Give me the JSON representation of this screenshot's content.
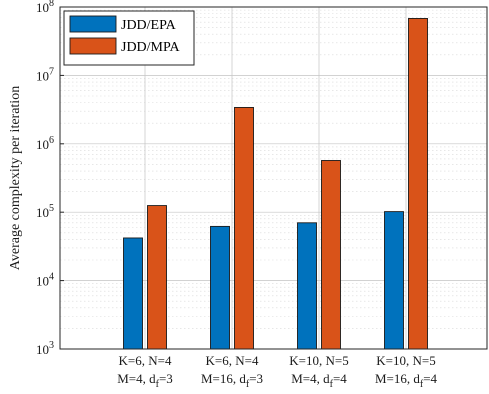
{
  "chart_data": {
    "type": "bar",
    "scale": "log",
    "ylabel": "Average complexity per iteration",
    "ylim": [
      1000,
      100000000
    ],
    "y_ticks": [
      {
        "base": "10",
        "exp": "3"
      },
      {
        "base": "10",
        "exp": "4"
      },
      {
        "base": "10",
        "exp": "5"
      },
      {
        "base": "10",
        "exp": "6"
      },
      {
        "base": "10",
        "exp": "7"
      },
      {
        "base": "10",
        "exp": "8"
      }
    ],
    "categories": [
      {
        "line1": "K=6, N=4",
        "line2_pre": "M=4, d",
        "line2_sub": "f",
        "line2_post": "=3"
      },
      {
        "line1": "K=6, N=4",
        "line2_pre": "M=16, d",
        "line2_sub": "f",
        "line2_post": "=3"
      },
      {
        "line1": "K=10, N=5",
        "line2_pre": "M=4, d",
        "line2_sub": "f",
        "line2_post": "=4"
      },
      {
        "line1": "K=10, N=5",
        "line2_pre": "M=16, d",
        "line2_sub": "f",
        "line2_post": "=4"
      }
    ],
    "series": [
      {
        "name": "JDD/EPA",
        "color": "#0072BD",
        "values": [
          42000,
          62000,
          70000,
          102000
        ]
      },
      {
        "name": "JDD/MPA",
        "color": "#D95319",
        "values": [
          125000,
          3400000,
          570000,
          68000000
        ]
      }
    ],
    "grid": true,
    "minor_grid": true,
    "legend_position": "top-left"
  }
}
